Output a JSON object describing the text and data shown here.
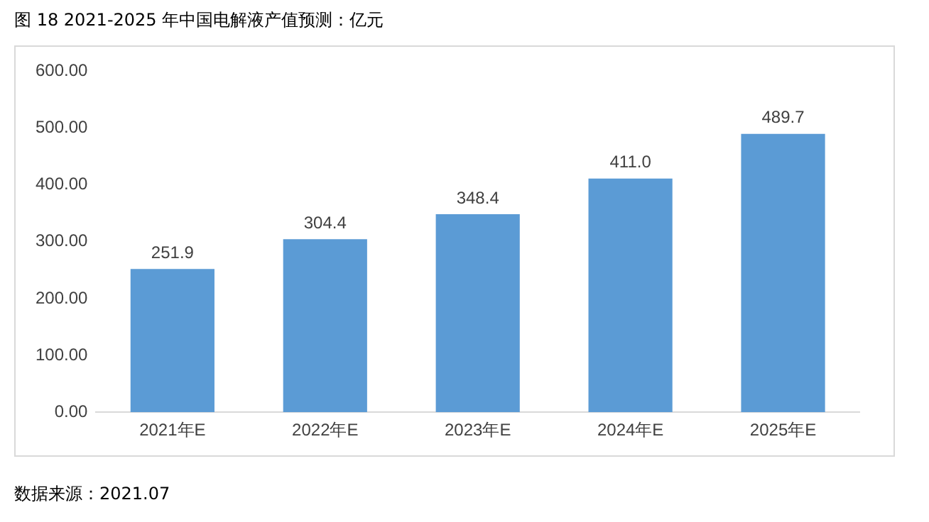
{
  "chart_data": {
    "type": "bar",
    "title": "图 18 2021-2025 年中国电解液产值预测：亿元",
    "categories": [
      "2021年E",
      "2022年E",
      "2023年E",
      "2024年E",
      "2025年E"
    ],
    "values": [
      251.9,
      304.4,
      348.4,
      411.0,
      489.7
    ],
    "value_labels": [
      "251.9",
      "304.4",
      "348.4",
      "411.0",
      "489.7"
    ],
    "color": "#5b9bd5",
    "ylim": [
      0,
      600
    ],
    "yticks": [
      {
        "value": 0,
        "label": "0.00"
      },
      {
        "value": 100,
        "label": "100.00"
      },
      {
        "value": 200,
        "label": "200.00"
      },
      {
        "value": 300,
        "label": "300.00"
      },
      {
        "value": 400,
        "label": "400.00"
      },
      {
        "value": 500,
        "label": "500.00"
      },
      {
        "value": 600,
        "label": "600.00"
      }
    ],
    "grid": false,
    "legend": false,
    "annotations": [
      "数据来源：2021.07"
    ]
  }
}
